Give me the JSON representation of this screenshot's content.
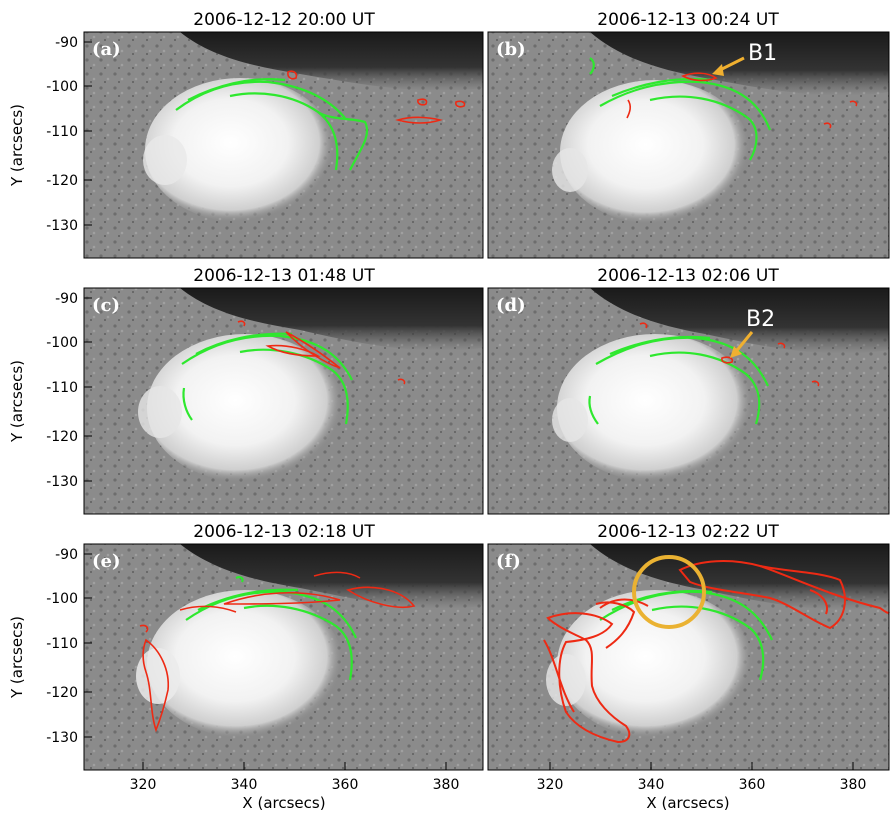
{
  "figure": {
    "x_axis_label": "X (arcsecs)",
    "y_axis_label": "Y (arcsecs)",
    "x_ticks": [
      "320",
      "340",
      "360",
      "380"
    ],
    "y_ticks": [
      "-90",
      "-100",
      "-110",
      "-120",
      "-130"
    ],
    "colors": {
      "contour_green": "#2ee82e",
      "contour_red": "#ee2a14",
      "arrow_orange": "#f0b030",
      "circle_orange": "#eab232"
    },
    "panels": [
      {
        "label": "(a)",
        "title": "2006-12-12 20:00 UT",
        "annotation": ""
      },
      {
        "label": "(b)",
        "title": "2006-12-13 00:24 UT",
        "annotation": "B1"
      },
      {
        "label": "(c)",
        "title": "2006-12-13 01:48 UT",
        "annotation": ""
      },
      {
        "label": "(d)",
        "title": "2006-12-13 02:06 UT",
        "annotation": "B2"
      },
      {
        "label": "(e)",
        "title": "2006-12-13 02:18 UT",
        "annotation": ""
      },
      {
        "label": "(f)",
        "title": "2006-12-13 02:22 UT",
        "annotation": "",
        "highlight": "circle"
      }
    ]
  }
}
